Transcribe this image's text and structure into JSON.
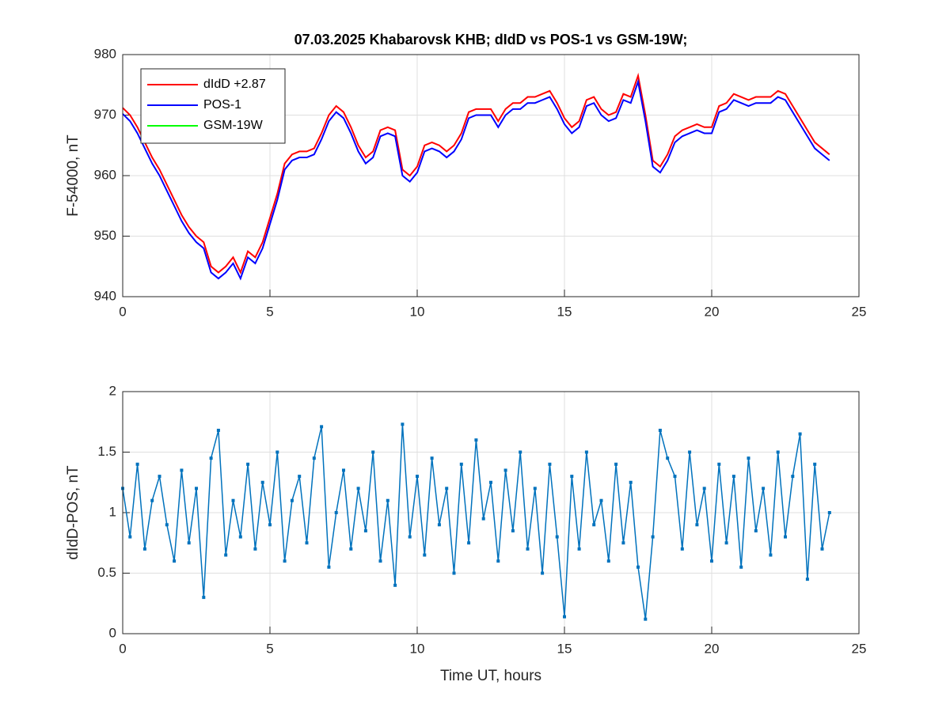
{
  "chart_data": [
    {
      "type": "line",
      "title": "07.03.2025  Khabarovsk KHB; dIdD vs POS-1 vs GSM-19W;",
      "y_label": "F-54000, nT",
      "xlim": [
        0,
        25
      ],
      "xticks": [
        0,
        5,
        10,
        15,
        20,
        25
      ],
      "ylim": [
        940,
        980
      ],
      "yticks": [
        940,
        950,
        960,
        970,
        980
      ],
      "grid": true,
      "legend": "northwest",
      "x": [
        0,
        0.25,
        0.5,
        0.75,
        1,
        1.25,
        1.5,
        1.75,
        2,
        2.25,
        2.5,
        2.75,
        3,
        3.25,
        3.5,
        3.75,
        4,
        4.25,
        4.5,
        4.75,
        5,
        5.25,
        5.5,
        5.75,
        6,
        6.25,
        6.5,
        6.75,
        7,
        7.25,
        7.5,
        7.75,
        8,
        8.25,
        8.5,
        8.75,
        9,
        9.25,
        9.5,
        9.75,
        10,
        10.25,
        10.5,
        10.75,
        11,
        11.25,
        11.5,
        11.75,
        12,
        12.25,
        12.5,
        12.75,
        13,
        13.25,
        13.5,
        13.75,
        14,
        14.25,
        14.5,
        14.75,
        15,
        15.25,
        15.5,
        15.75,
        16,
        16.25,
        16.5,
        16.75,
        17,
        17.25,
        17.5,
        17.75,
        18,
        18.25,
        18.5,
        18.75,
        19,
        19.25,
        19.5,
        19.75,
        20,
        20.25,
        20.5,
        20.75,
        21,
        21.25,
        21.5,
        21.75,
        22,
        22.25,
        22.5,
        22.75,
        23,
        23.25,
        23.5,
        23.75,
        24
      ],
      "series": [
        {
          "name": "dIdD +2.87",
          "color": "#ff0000",
          "values": [
            971.2,
            970,
            968,
            965.5,
            963,
            961,
            958.5,
            956,
            953.5,
            951.5,
            950,
            949,
            945,
            944,
            945,
            946.5,
            944,
            947.5,
            946.5,
            949,
            953,
            957,
            962,
            963.5,
            964,
            964,
            964.5,
            967,
            970,
            971.5,
            970.5,
            968,
            965,
            963,
            964,
            967.5,
            968,
            967.5,
            961,
            960,
            961.5,
            965,
            965.5,
            965,
            964,
            965,
            967,
            970.5,
            971,
            971,
            971,
            969,
            971,
            972,
            972,
            973,
            973,
            973.5,
            974,
            972,
            969.5,
            968,
            969,
            972.5,
            973,
            971,
            970,
            970.5,
            973.5,
            973,
            976.5,
            970,
            962.5,
            961.5,
            963.5,
            966.5,
            967.5,
            968,
            968.5,
            968,
            968,
            971.5,
            972,
            973.5,
            973,
            972.5,
            973,
            973,
            973,
            974,
            973.5,
            971.5,
            969.5,
            967.5,
            965.5,
            964.5,
            963.5
          ]
        },
        {
          "name": "POS-1",
          "color": "#0000ff",
          "values": [
            970.2,
            969,
            967,
            964.5,
            962,
            960,
            957.5,
            955,
            952.5,
            950.5,
            949,
            948,
            944,
            943,
            944,
            945.5,
            943,
            946.5,
            945.5,
            948,
            952,
            956,
            961,
            962.5,
            963,
            963,
            963.5,
            966,
            969,
            970.5,
            969.5,
            967,
            964,
            962,
            963,
            966.5,
            967,
            966.5,
            960,
            959,
            960.5,
            964,
            964.5,
            964,
            963,
            964,
            966,
            969.5,
            970,
            970,
            970,
            968,
            970,
            971,
            971,
            972,
            972,
            972.5,
            973,
            971,
            968.5,
            967,
            968,
            971.5,
            972,
            970,
            969,
            969.5,
            972.5,
            972,
            975.5,
            969,
            961.5,
            960.5,
            962.5,
            965.5,
            966.5,
            967,
            967.5,
            967,
            967,
            970.5,
            971,
            972.5,
            972,
            971.5,
            972,
            972,
            972,
            973,
            972.5,
            970.5,
            968.5,
            966.5,
            964.5,
            963.5,
            962.5
          ]
        },
        {
          "name": "GSM-19W",
          "color": "#00ff00",
          "values": [
            null,
            null,
            null,
            null,
            null,
            null,
            null,
            null,
            null,
            null,
            null,
            null,
            null,
            null,
            null,
            null,
            null,
            null,
            null,
            null,
            null,
            null,
            null,
            null,
            null,
            null,
            null,
            null,
            null,
            null,
            null,
            null,
            null,
            null,
            null,
            null,
            null,
            null,
            null,
            null,
            null,
            null,
            null,
            null,
            null,
            null,
            null,
            null,
            null,
            null,
            null,
            null,
            null,
            null,
            null,
            null,
            null,
            null,
            null,
            null,
            null,
            null,
            null,
            null,
            null,
            null,
            null,
            null,
            null,
            null,
            null,
            null,
            null,
            null,
            null,
            null,
            null,
            null,
            null,
            null,
            null,
            null,
            null,
            null,
            null,
            null,
            null,
            null,
            null,
            null,
            null,
            null,
            null,
            null,
            null,
            null,
            null
          ]
        }
      ]
    },
    {
      "type": "line",
      "y_label": "dIdD-POS, nT",
      "x_label": "Time UT, hours",
      "xlim": [
        0,
        25
      ],
      "xticks": [
        0,
        5,
        10,
        15,
        20,
        25
      ],
      "ylim": [
        0,
        2
      ],
      "yticks": [
        0,
        0.5,
        1,
        1.5,
        2
      ],
      "grid": true,
      "markers": true,
      "x": [
        0,
        0.25,
        0.5,
        0.75,
        1,
        1.25,
        1.5,
        1.75,
        2,
        2.25,
        2.5,
        2.75,
        3,
        3.25,
        3.5,
        3.75,
        4,
        4.25,
        4.5,
        4.75,
        5,
        5.25,
        5.5,
        5.75,
        6,
        6.25,
        6.5,
        6.75,
        7,
        7.25,
        7.5,
        7.75,
        8,
        8.25,
        8.5,
        8.75,
        9,
        9.25,
        9.5,
        9.75,
        10,
        10.25,
        10.5,
        10.75,
        11,
        11.25,
        11.5,
        11.75,
        12,
        12.25,
        12.5,
        12.75,
        13,
        13.25,
        13.5,
        13.75,
        14,
        14.25,
        14.5,
        14.75,
        15,
        15.25,
        15.5,
        15.75,
        16,
        16.25,
        16.5,
        16.75,
        17,
        17.25,
        17.5,
        17.75,
        18,
        18.25,
        18.5,
        18.75,
        19,
        19.25,
        19.5,
        19.75,
        20,
        20.25,
        20.5,
        20.75,
        21,
        21.25,
        21.5,
        21.75,
        22,
        22.25,
        22.5,
        22.75,
        23,
        23.25,
        23.5,
        23.75,
        24
      ],
      "series": [
        {
          "color": "#0072bd",
          "values": [
            1.2,
            0.8,
            1.4,
            0.7,
            1.1,
            1.3,
            0.9,
            0.6,
            1.35,
            0.75,
            1.2,
            0.3,
            1.45,
            1.68,
            0.65,
            1.1,
            0.8,
            1.4,
            0.7,
            1.25,
            0.9,
            1.5,
            0.6,
            1.1,
            1.3,
            0.75,
            1.45,
            1.71,
            0.55,
            1.0,
            1.35,
            0.7,
            1.2,
            0.85,
            1.5,
            0.6,
            1.1,
            0.4,
            1.73,
            0.8,
            1.3,
            0.65,
            1.45,
            0.9,
            1.2,
            0.5,
            1.4,
            0.75,
            1.6,
            0.95,
            1.25,
            0.6,
            1.35,
            0.85,
            1.5,
            0.7,
            1.2,
            0.5,
            1.4,
            0.8,
            0.14,
            1.3,
            0.7,
            1.5,
            0.9,
            1.1,
            0.6,
            1.4,
            0.75,
            1.25,
            0.55,
            0.12,
            0.8,
            1.68,
            1.45,
            1.3,
            0.7,
            1.5,
            0.9,
            1.2,
            0.6,
            1.4,
            0.75,
            1.3,
            0.55,
            1.45,
            0.85,
            1.2,
            0.65,
            1.5,
            0.8,
            1.3,
            1.65,
            0.45,
            1.4,
            0.7,
            1.0
          ]
        }
      ]
    }
  ]
}
